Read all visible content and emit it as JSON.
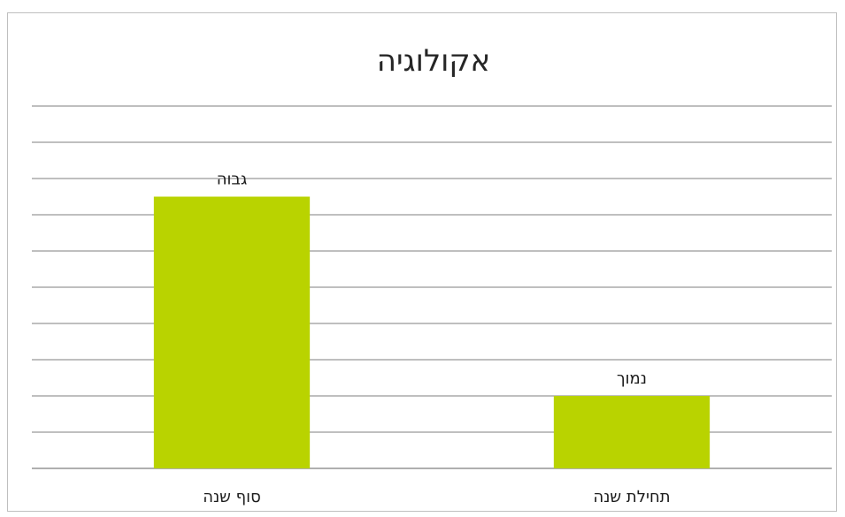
{
  "chart_data": {
    "type": "bar",
    "title": "אקולוגיה",
    "categories": [
      "סוף שנה",
      "תחילת שנה"
    ],
    "values": [
      7.5,
      2.0
    ],
    "data_labels": [
      "גבוה",
      "נמוך"
    ],
    "ylim": [
      0,
      10
    ],
    "grid": true,
    "legend": "none",
    "bar_color": "#b9d300"
  }
}
